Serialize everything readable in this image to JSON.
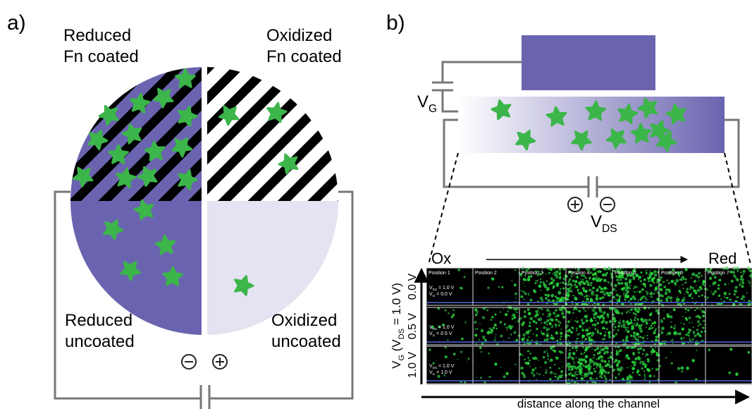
{
  "panel_a": {
    "label": "a)",
    "quadrants": [
      {
        "lines": [
          "Reduced",
          "Fn coated"
        ]
      },
      {
        "lines": [
          "Oxidized",
          "Fn coated"
        ]
      },
      {
        "lines": [
          "Reduced",
          "uncoated"
        ]
      },
      {
        "lines": [
          "Oxidized",
          "uncoated"
        ]
      }
    ]
  },
  "panel_b": {
    "label": "b)",
    "gate": [
      {
        "text": "V"
      },
      {
        "text": "G",
        "sub": true
      }
    ],
    "source_drain": [
      {
        "text": "V"
      },
      {
        "text": "DS",
        "sub": true
      }
    ],
    "left_end": "Ox",
    "right_end": "Red",
    "x_axis_label": "distance along the channel",
    "y_axis_label": [
      {
        "text": "V"
      },
      {
        "text": "G",
        "sub": true
      },
      {
        "text": " (V"
      },
      {
        "text": "DS",
        "sub": true
      },
      {
        "text": " = 1.0 V)"
      }
    ],
    "columns": [
      "Position 1",
      "Position 2",
      "Position 3",
      "Position 4",
      "Position 5",
      "Position 6",
      "Position 7"
    ],
    "rows": [
      {
        "label": "0.0 V",
        "notes": [
          [
            {
              "text": "V"
            },
            {
              "text": "DS",
              "sub": true
            },
            {
              "text": " = 1.0 V"
            }
          ],
          [
            {
              "text": "V"
            },
            {
              "text": "G",
              "sub": true
            },
            {
              "text": " = 0.0 V"
            }
          ]
        ]
      },
      {
        "label": "0.5 V",
        "notes": [
          [
            {
              "text": "V"
            },
            {
              "text": "DS",
              "sub": true
            },
            {
              "text": " = 1.0 V"
            }
          ],
          [
            {
              "text": "V"
            },
            {
              "text": "G",
              "sub": true
            },
            {
              "text": " = 0.5 V"
            }
          ]
        ]
      },
      {
        "label": "1.0 V",
        "notes": [
          [
            {
              "text": "V"
            },
            {
              "text": "DS",
              "sub": true
            },
            {
              "text": " = 1.0 V"
            }
          ],
          [
            {
              "text": "V"
            },
            {
              "text": "G",
              "sub": true
            },
            {
              "text": " = 1.0 V"
            }
          ]
        ]
      }
    ]
  }
}
